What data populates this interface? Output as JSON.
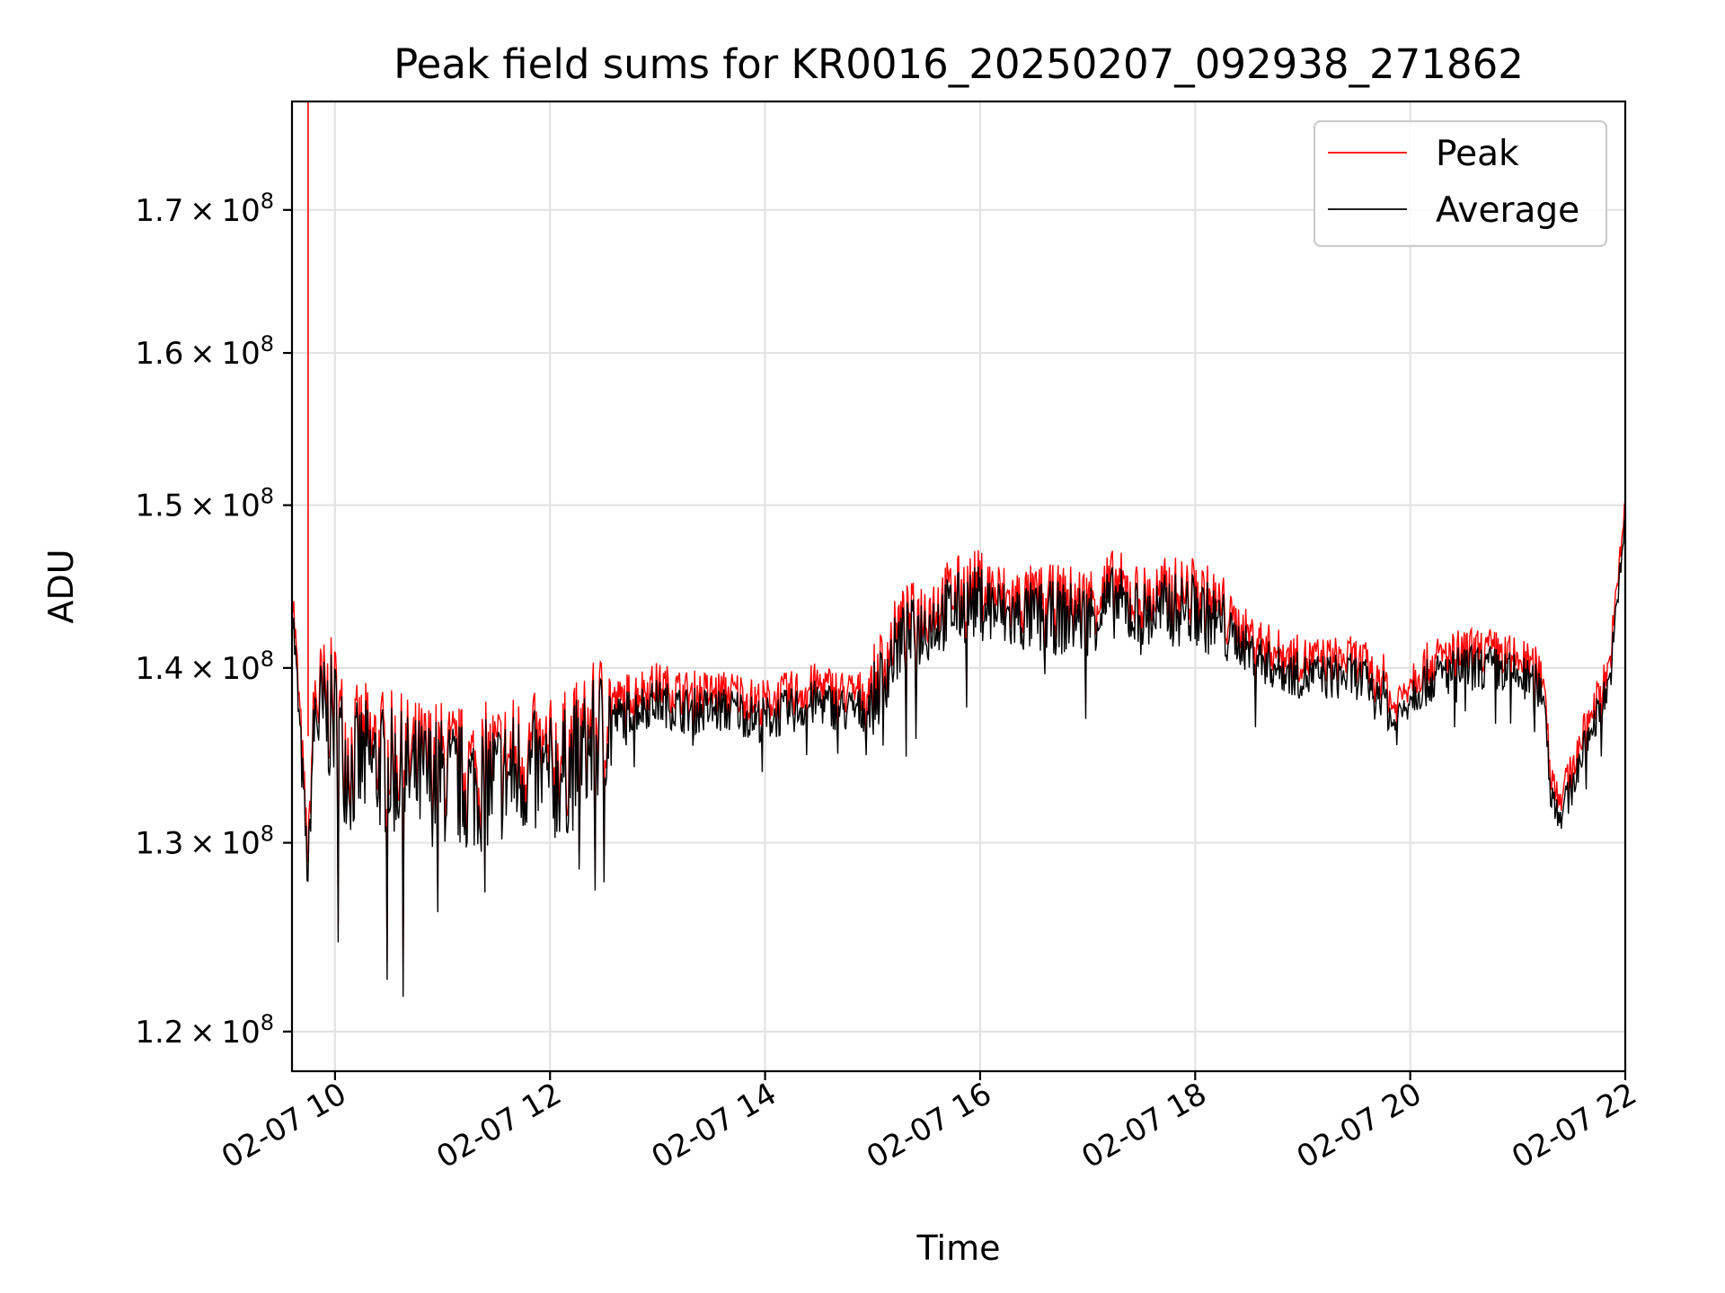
{
  "chart_data": {
    "type": "line",
    "title": "Peak field sums for KR0016_20250207_092938_271862",
    "xlabel": "Time",
    "ylabel": "ADU",
    "yscale": "log",
    "xlim": [
      9.6,
      22.0
    ],
    "ylim": [
      118000000,
      178000000
    ],
    "x_ticks": [
      {
        "value": 10,
        "label": "02-07 10"
      },
      {
        "value": 12,
        "label": "02-07 12"
      },
      {
        "value": 14,
        "label": "02-07 14"
      },
      {
        "value": 16,
        "label": "02-07 16"
      },
      {
        "value": 18,
        "label": "02-07 18"
      },
      {
        "value": 20,
        "label": "02-07 20"
      },
      {
        "value": 22,
        "label": "02-07 22"
      }
    ],
    "y_ticks": [
      {
        "value": 120000000,
        "mantissa": "1.2",
        "exponent": "8"
      },
      {
        "value": 130000000,
        "mantissa": "1.3",
        "exponent": "8"
      },
      {
        "value": 140000000,
        "mantissa": "1.4",
        "exponent": "8"
      },
      {
        "value": 150000000,
        "mantissa": "1.5",
        "exponent": "8"
      },
      {
        "value": 160000000,
        "mantissa": "1.6",
        "exponent": "8"
      },
      {
        "value": 170000000,
        "mantissa": "1.7",
        "exponent": "8"
      }
    ],
    "grid": true,
    "legend_position": "top-right",
    "series": [
      {
        "name": "Peak",
        "color": "#ff0000"
      },
      {
        "name": "Average",
        "color": "#000000"
      }
    ],
    "x_points": [
      9.6,
      9.75,
      9.8,
      9.83,
      9.85,
      9.9,
      10.0,
      10.08,
      10.15,
      10.25,
      10.5,
      10.75,
      11.0,
      11.25,
      11.5,
      11.75,
      12.0,
      12.15,
      12.25,
      12.4,
      12.5,
      12.75,
      13.0,
      13.25,
      13.5,
      13.75,
      13.9,
      14.0,
      14.25,
      14.5,
      14.75,
      14.9,
      15.0,
      15.25,
      15.5,
      15.75,
      16.0,
      16.25,
      16.5,
      16.75,
      17.0,
      17.25,
      17.5,
      17.75,
      18.0,
      18.25,
      18.5,
      18.75,
      19.0,
      19.25,
      19.5,
      19.75,
      19.85,
      20.0,
      20.25,
      20.5,
      20.75,
      21.0,
      21.15,
      21.25,
      21.3,
      21.4,
      21.5,
      21.6,
      21.75,
      21.85,
      21.93,
      22.0
    ],
    "average_values": [
      144000000,
      128000000,
      136500000,
      137500000,
      137000000,
      137000000,
      137000000,
      135000000,
      134000000,
      134500000,
      134000000,
      133500000,
      133500000,
      133000000,
      133500000,
      134000000,
      133500000,
      134000000,
      134500000,
      135500000,
      136500000,
      137500000,
      138000000,
      137500000,
      137500000,
      137500000,
      137000000,
      137000000,
      137500000,
      138000000,
      137500000,
      137500000,
      138000000,
      141500000,
      142500000,
      143500000,
      144000000,
      143000000,
      143000000,
      143000000,
      143000000,
      144000000,
      143000000,
      143500000,
      143500000,
      142500000,
      141000000,
      140000000,
      139500000,
      139500000,
      139500000,
      138500000,
      136500000,
      138500000,
      139500000,
      140000000,
      140000000,
      139500000,
      139000000,
      138500000,
      133000000,
      131500000,
      133000000,
      135000000,
      137500000,
      139000000,
      144000000,
      149500000
    ],
    "peak_values": [
      145000000,
      129000000,
      137500000,
      138500000,
      138000000,
      138000000,
      138000000,
      136000000,
      135000000,
      135500000,
      135000000,
      134500000,
      134500000,
      134000000,
      134500000,
      135000000,
      134500000,
      135000000,
      135500000,
      136500000,
      137500000,
      138500000,
      139000000,
      138500000,
      138500000,
      138500000,
      138000000,
      138000000,
      138500000,
      139000000,
      138500000,
      138500000,
      139000000,
      142500000,
      143500000,
      144500000,
      145000000,
      144000000,
      144000000,
      144000000,
      144000000,
      145000000,
      144000000,
      144500000,
      144500000,
      143500000,
      142000000,
      141000000,
      140500000,
      140500000,
      140500000,
      139500000,
      137500000,
      139500000,
      140500000,
      141000000,
      141000000,
      140500000,
      140000000,
      139500000,
      134000000,
      132500000,
      134000000,
      136000000,
      138500000,
      140000000,
      145000000,
      150500000
    ],
    "peak_spike": {
      "x": 9.75,
      "value": 178000000
    }
  }
}
